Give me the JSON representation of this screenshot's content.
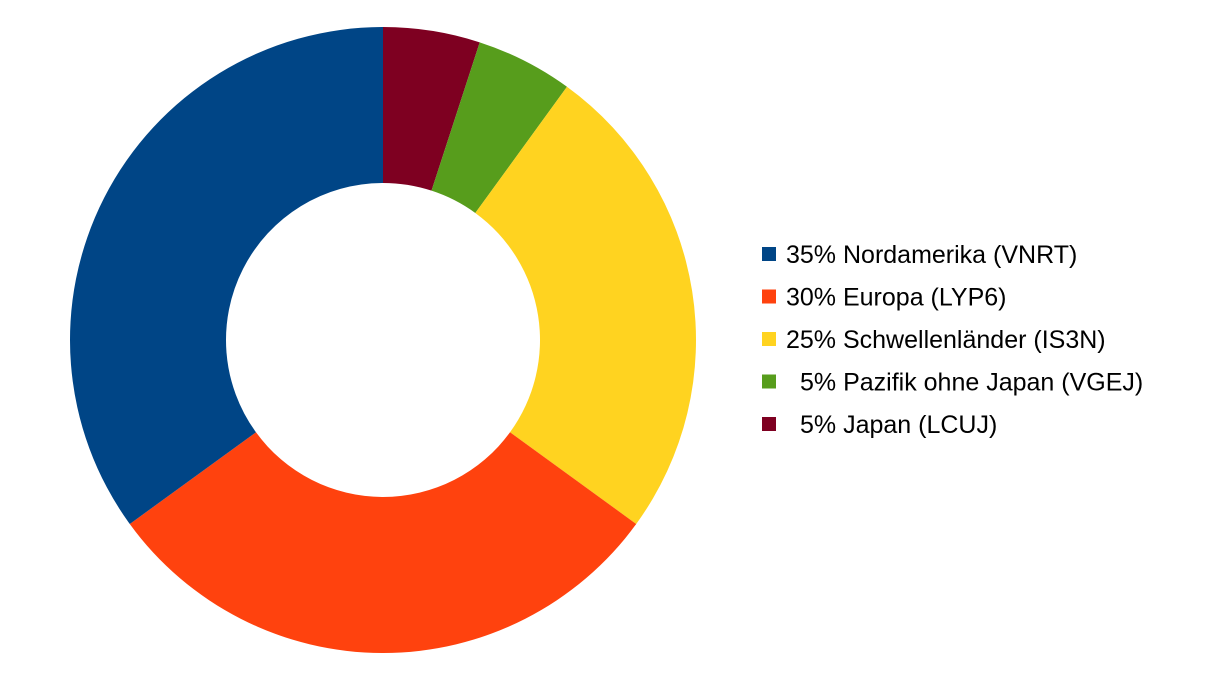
{
  "chart_data": {
    "type": "pie",
    "variant": "donut",
    "title": "",
    "legend_position": "right",
    "slices": [
      {
        "label": "35% Nordamerika (VNRT)",
        "value": 35,
        "color": "#004586"
      },
      {
        "label": "30% Europa (LYP6)",
        "value": 30,
        "color": "#ff420e"
      },
      {
        "label": "25% Schwellenländer (IS3N)",
        "value": 25,
        "color": "#ffd320"
      },
      {
        "label": "5% Pazifik ohne Japan (VGEJ)",
        "value": 5,
        "color": "#579d1c"
      },
      {
        "label": "5% Japan (LCUJ)",
        "value": 5,
        "color": "#7e0021"
      }
    ]
  }
}
